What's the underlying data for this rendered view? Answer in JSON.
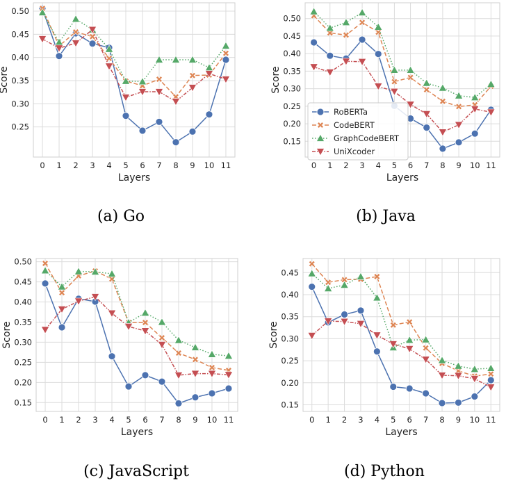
{
  "series_styles": [
    {
      "name": "RoBERTa",
      "color": "#4c72b0",
      "dash": "",
      "marker": "circle"
    },
    {
      "name": "CodeBERT",
      "color": "#dd8452",
      "dash": "6,3",
      "marker": "x"
    },
    {
      "name": "GraphCodeBERT",
      "color": "#55a868",
      "dash": "1.5,2.5",
      "marker": "triangle-up"
    },
    {
      "name": "UniXcoder",
      "color": "#c44e52",
      "dash": "5,2,1.5,2",
      "marker": "triangle-down"
    }
  ],
  "chart_data": [
    {
      "type": "line",
      "caption": "(a)  Go",
      "xlabel": "Layers",
      "ylabel": "Score",
      "x": [
        0,
        1,
        2,
        3,
        4,
        5,
        6,
        7,
        8,
        9,
        10,
        11
      ],
      "ylim": [
        0.185,
        0.518
      ],
      "yticks": [
        0.25,
        0.3,
        0.35,
        0.4,
        0.45,
        0.5
      ],
      "ytick_labels": [
        "0.25",
        "0.30",
        "0.35",
        "0.40",
        "0.45",
        "0.50"
      ],
      "grid": true,
      "legend": null,
      "series": [
        {
          "name": "RoBERTa",
          "values": [
            0.505,
            0.403,
            0.452,
            0.43,
            0.421,
            0.274,
            0.242,
            0.261,
            0.217,
            0.24,
            0.277,
            0.395
          ]
        },
        {
          "name": "CodeBERT",
          "values": [
            0.506,
            0.425,
            0.455,
            0.445,
            0.398,
            0.349,
            0.339,
            0.353,
            0.315,
            0.361,
            0.362,
            0.409
          ]
        },
        {
          "name": "GraphCodeBERT",
          "values": [
            0.497,
            0.433,
            0.483,
            0.46,
            0.418,
            0.349,
            0.348,
            0.395,
            0.395,
            0.395,
            0.378,
            0.425
          ]
        },
        {
          "name": "UniXcoder",
          "values": [
            0.44,
            0.42,
            0.431,
            0.46,
            0.381,
            0.314,
            0.326,
            0.326,
            0.305,
            0.335,
            0.365,
            0.353
          ]
        }
      ]
    },
    {
      "type": "line",
      "caption": "(b)  Java",
      "xlabel": "Layers",
      "ylabel": "Score",
      "x": [
        0,
        1,
        2,
        3,
        4,
        5,
        6,
        7,
        8,
        9,
        10,
        11
      ],
      "ylim": [
        0.105,
        0.545
      ],
      "yticks": [
        0.15,
        0.2,
        0.25,
        0.3,
        0.35,
        0.4,
        0.45,
        0.5
      ],
      "ytick_labels": [
        "0.15",
        "0.20",
        "0.25",
        "0.30",
        "0.35",
        "0.40",
        "0.45",
        "0.50"
      ],
      "grid": true,
      "legend": "lower-left",
      "series": [
        {
          "name": "RoBERTa",
          "values": [
            0.432,
            0.394,
            0.386,
            0.44,
            0.399,
            0.251,
            0.215,
            0.189,
            0.129,
            0.147,
            0.172,
            0.24
          ]
        },
        {
          "name": "CodeBERT",
          "values": [
            0.508,
            0.459,
            0.453,
            0.489,
            0.461,
            0.32,
            0.332,
            0.297,
            0.264,
            0.249,
            0.254,
            0.307
          ]
        },
        {
          "name": "GraphCodeBERT",
          "values": [
            0.52,
            0.473,
            0.489,
            0.517,
            0.476,
            0.353,
            0.353,
            0.316,
            0.302,
            0.28,
            0.275,
            0.313
          ]
        },
        {
          "name": "UniXcoder",
          "values": [
            0.362,
            0.347,
            0.378,
            0.377,
            0.307,
            0.292,
            0.255,
            0.228,
            0.176,
            0.197,
            0.242,
            0.233
          ]
        }
      ]
    },
    {
      "type": "line",
      "caption": "(c)  JavaScript",
      "xlabel": "Layers",
      "ylabel": "Score",
      "x": [
        0,
        1,
        2,
        3,
        4,
        5,
        6,
        7,
        8,
        9,
        10,
        11
      ],
      "ylim": [
        0.128,
        0.508
      ],
      "yticks": [
        0.15,
        0.2,
        0.25,
        0.3,
        0.35,
        0.4,
        0.45,
        0.5
      ],
      "ytick_labels": [
        "0.15",
        "0.20",
        "0.25",
        "0.30",
        "0.35",
        "0.40",
        "0.45",
        "0.50"
      ],
      "grid": true,
      "legend": null,
      "series": [
        {
          "name": "RoBERTa",
          "values": [
            0.446,
            0.337,
            0.408,
            0.401,
            0.265,
            0.19,
            0.218,
            0.202,
            0.148,
            0.163,
            0.173,
            0.185
          ]
        },
        {
          "name": "CodeBERT",
          "values": [
            0.496,
            0.423,
            0.465,
            0.477,
            0.457,
            0.349,
            0.349,
            0.311,
            0.273,
            0.257,
            0.237,
            0.23
          ]
        },
        {
          "name": "GraphCodeBERT",
          "values": [
            0.478,
            0.438,
            0.476,
            0.475,
            0.47,
            0.349,
            0.373,
            0.35,
            0.305,
            0.287,
            0.27,
            0.266
          ]
        },
        {
          "name": "UniXcoder",
          "values": [
            0.331,
            0.382,
            0.402,
            0.413,
            0.372,
            0.339,
            0.328,
            0.294,
            0.218,
            0.222,
            0.222,
            0.219
          ]
        }
      ]
    },
    {
      "type": "line",
      "caption": "(d)  Python",
      "xlabel": "Layers",
      "ylabel": "Score",
      "x": [
        0,
        1,
        2,
        3,
        4,
        5,
        6,
        7,
        8,
        9,
        10,
        11
      ],
      "ylim": [
        0.135,
        0.482
      ],
      "yticks": [
        0.15,
        0.2,
        0.25,
        0.3,
        0.35,
        0.4,
        0.45
      ],
      "ytick_labels": [
        "0.15",
        "0.20",
        "0.25",
        "0.30",
        "0.35",
        "0.40",
        "0.45"
      ],
      "grid": true,
      "legend": null,
      "series": [
        {
          "name": "RoBERTa",
          "values": [
            0.418,
            0.337,
            0.355,
            0.364,
            0.271,
            0.191,
            0.187,
            0.176,
            0.154,
            0.155,
            0.169,
            0.206
          ]
        },
        {
          "name": "CodeBERT",
          "values": [
            0.47,
            0.428,
            0.434,
            0.435,
            0.441,
            0.331,
            0.338,
            0.279,
            0.244,
            0.227,
            0.215,
            0.22
          ]
        },
        {
          "name": "GraphCodeBERT",
          "values": [
            0.448,
            0.414,
            0.422,
            0.441,
            0.393,
            0.28,
            0.297,
            0.298,
            0.251,
            0.238,
            0.231,
            0.233
          ]
        },
        {
          "name": "UniXcoder",
          "values": [
            0.307,
            0.34,
            0.339,
            0.334,
            0.308,
            0.288,
            0.277,
            0.253,
            0.217,
            0.216,
            0.209,
            0.19
          ]
        }
      ]
    }
  ]
}
